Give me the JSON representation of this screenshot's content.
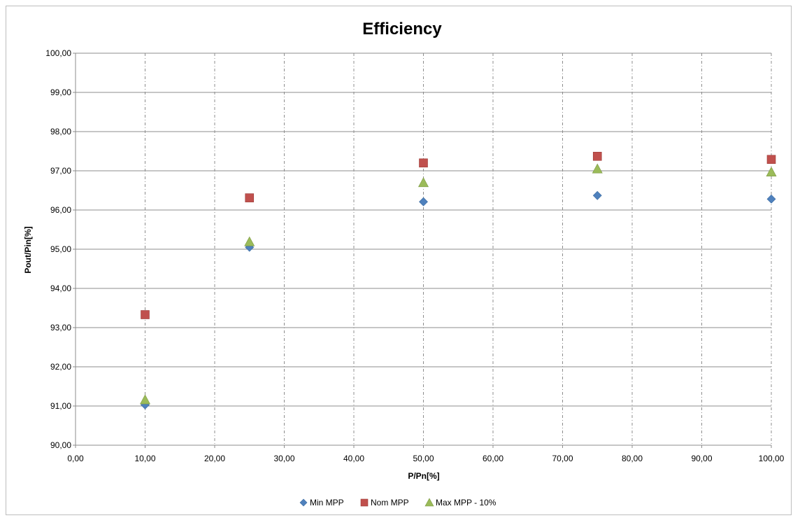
{
  "chart_data": {
    "type": "scatter",
    "title": "Efficiency",
    "xlabel": "P/Pn[%]",
    "ylabel": "Pout/Pin[%]",
    "xlim": [
      0,
      100
    ],
    "ylim": [
      90,
      100
    ],
    "x_ticks": [
      "0,00",
      "10,00",
      "20,00",
      "30,00",
      "40,00",
      "50,00",
      "60,00",
      "70,00",
      "80,00",
      "90,00",
      "100,00"
    ],
    "y_ticks": [
      "90,00",
      "91,00",
      "92,00",
      "93,00",
      "94,00",
      "95,00",
      "96,00",
      "97,00",
      "98,00",
      "99,00",
      "100,00"
    ],
    "grid": {
      "vertical": "dashed",
      "horizontal": "solid"
    },
    "legend_position": "bottom",
    "series": [
      {
        "name": "Min MPP",
        "marker": "diamond",
        "color": "#4F81BD",
        "x": [
          10,
          25,
          50,
          75,
          100
        ],
        "y": [
          91.03,
          95.05,
          96.21,
          96.37,
          96.28
        ]
      },
      {
        "name": "Nom MPP",
        "marker": "square",
        "color": "#C0504D",
        "x": [
          10,
          25,
          50,
          75,
          100
        ],
        "y": [
          93.33,
          96.31,
          97.2,
          97.37,
          97.29
        ]
      },
      {
        "name": "Max MPP - 10%",
        "marker": "triangle",
        "color": "#9BBB59",
        "x": [
          10,
          25,
          50,
          75,
          100
        ],
        "y": [
          91.16,
          95.19,
          96.7,
          97.05,
          96.97
        ]
      }
    ]
  }
}
